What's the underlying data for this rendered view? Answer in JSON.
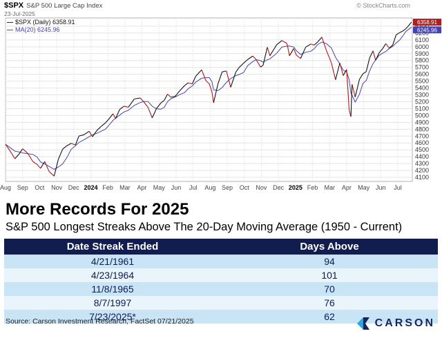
{
  "chart": {
    "symbol": "$SPX",
    "symbol_desc": "S&P 500 Large Cap Index",
    "date": "23-Jul-2025",
    "credit": "© StockCharts.com",
    "legend": [
      {
        "label": "$SPX (Daily) 6358.91",
        "color": "#111111"
      },
      {
        "label": "MA(20) 6245.96",
        "color": "#4343b0"
      }
    ],
    "price_box": {
      "value": "6358.91",
      "bg": "#a82020"
    },
    "ma_box": {
      "value": "6245.96",
      "bg": "#4343b0"
    }
  },
  "chart_data": {
    "type": "line",
    "title": "$SPX S&P 500 Large Cap Index",
    "xlabel": "",
    "ylabel": "",
    "grid": true,
    "legend_position": "top-left",
    "x_ticks": [
      "Aug",
      "Sep",
      "Oct",
      "Nov",
      "Dec",
      "2024",
      "Feb",
      "Mar",
      "Apr",
      "May",
      "Jun",
      "Jul",
      "Aug",
      "Sep",
      "Oct",
      "Nov",
      "Dec",
      "2025",
      "Feb",
      "Mar",
      "Apr",
      "May",
      "Jun",
      "Jul"
    ],
    "bold_ticks": [
      "2024",
      "2025"
    ],
    "ylim": [
      4040,
      6420
    ],
    "y_ticks": [
      6300,
      6200,
      6100,
      6000,
      5900,
      5800,
      5700,
      5600,
      5500,
      5400,
      5300,
      5200,
      5100,
      5000,
      4900,
      4800,
      4700,
      4600,
      4500,
      4400,
      4300,
      4200,
      4100
    ],
    "series": [
      {
        "name": "$SPX (Daily)",
        "last": 6358.91,
        "color": "#111111",
        "down_color": "#b01818",
        "points": [
          [
            0.0,
            4580
          ],
          [
            0.25,
            4490
          ],
          [
            0.55,
            4370
          ],
          [
            0.8,
            4440
          ],
          [
            1.0,
            4515
          ],
          [
            1.3,
            4450
          ],
          [
            1.6,
            4330
          ],
          [
            1.85,
            4288
          ],
          [
            2.05,
            4230
          ],
          [
            2.3,
            4330
          ],
          [
            2.55,
            4186
          ],
          [
            2.85,
            4117
          ],
          [
            3.1,
            4365
          ],
          [
            3.35,
            4510
          ],
          [
            3.6,
            4560
          ],
          [
            3.85,
            4595
          ],
          [
            4.1,
            4570
          ],
          [
            4.3,
            4700
          ],
          [
            4.6,
            4720
          ],
          [
            4.9,
            4770
          ],
          [
            5.1,
            4690
          ],
          [
            5.35,
            4780
          ],
          [
            5.6,
            4840
          ],
          [
            5.85,
            4890
          ],
          [
            6.1,
            4960
          ],
          [
            6.3,
            5025
          ],
          [
            6.45,
            4955
          ],
          [
            6.7,
            5090
          ],
          [
            6.95,
            5135
          ],
          [
            7.2,
            5120
          ],
          [
            7.55,
            5240
          ],
          [
            7.9,
            5255
          ],
          [
            8.1,
            5200
          ],
          [
            8.35,
            5120
          ],
          [
            8.6,
            4965
          ],
          [
            8.85,
            5100
          ],
          [
            9.1,
            5180
          ],
          [
            9.3,
            5220
          ],
          [
            9.5,
            5310
          ],
          [
            9.7,
            5265
          ],
          [
            9.95,
            5280
          ],
          [
            10.2,
            5355
          ],
          [
            10.5,
            5435
          ],
          [
            10.7,
            5475
          ],
          [
            10.95,
            5460
          ],
          [
            11.15,
            5570
          ],
          [
            11.5,
            5665
          ],
          [
            11.75,
            5505
          ],
          [
            11.95,
            5460
          ],
          [
            12.1,
            5346
          ],
          [
            12.2,
            5186
          ],
          [
            12.45,
            5455
          ],
          [
            12.7,
            5635
          ],
          [
            12.95,
            5648
          ],
          [
            13.2,
            5410
          ],
          [
            13.5,
            5630
          ],
          [
            13.7,
            5700
          ],
          [
            13.95,
            5760
          ],
          [
            14.2,
            5815
          ],
          [
            14.5,
            5865
          ],
          [
            14.7,
            5810
          ],
          [
            14.95,
            5705
          ],
          [
            15.1,
            5730
          ],
          [
            15.35,
            5995
          ],
          [
            15.5,
            5870
          ],
          [
            15.9,
            6030
          ],
          [
            16.2,
            6090
          ],
          [
            16.5,
            6050
          ],
          [
            16.65,
            5870
          ],
          [
            16.9,
            5975
          ],
          [
            17.05,
            5880
          ],
          [
            17.3,
            5830
          ],
          [
            17.6,
            5995
          ],
          [
            17.9,
            6040
          ],
          [
            18.1,
            6025
          ],
          [
            18.3,
            6070
          ],
          [
            18.55,
            6140
          ],
          [
            18.8,
            5955
          ],
          [
            19.1,
            5770
          ],
          [
            19.35,
            5520
          ],
          [
            19.6,
            5765
          ],
          [
            19.8,
            5580
          ],
          [
            20.0,
            5670
          ],
          [
            20.15,
            5074
          ],
          [
            20.25,
            4983
          ],
          [
            20.32,
            5456
          ],
          [
            20.5,
            5268
          ],
          [
            20.75,
            5525
          ],
          [
            20.95,
            5605
          ],
          [
            21.15,
            5640
          ],
          [
            21.35,
            5840
          ],
          [
            21.55,
            5940
          ],
          [
            21.7,
            5803
          ],
          [
            21.9,
            5910
          ],
          [
            22.1,
            5970
          ],
          [
            22.3,
            6045
          ],
          [
            22.5,
            5980
          ],
          [
            22.7,
            6025
          ],
          [
            22.9,
            6173
          ],
          [
            23.1,
            6205
          ],
          [
            23.3,
            6230
          ],
          [
            23.45,
            6259
          ],
          [
            23.6,
            6297
          ],
          [
            23.8,
            6359
          ]
        ]
      },
      {
        "name": "MA(20)",
        "last": 6245.96,
        "color": "#4343b0",
        "derived": "20-day moving average of $SPX"
      }
    ]
  },
  "headline": {
    "title": "More Records For 2025",
    "subtitle": "S&P 500 Longest Streaks Above The 20-Day Moving Average (1950 - Current)"
  },
  "table": {
    "columns": [
      "Date Streak Ended",
      "Days Above"
    ],
    "rows": [
      [
        "4/21/1961",
        "94"
      ],
      [
        "4/23/1964",
        "101"
      ],
      [
        "11/8/1965",
        "70"
      ],
      [
        "8/7/1997",
        "76"
      ],
      [
        "7/23/2025*",
        "62"
      ]
    ]
  },
  "source": "Source: Carson Investment Research, FactSet 07/21/2025",
  "logo": {
    "text": "CARSON"
  },
  "colors": {
    "table_header_bg": "#101d4e",
    "row_light": "#c9e4f5",
    "row_lighter": "#e9f4fb",
    "navy_text": "#0b1b57",
    "logo_navy": "#17275c",
    "logo_blue": "#2aa7df",
    "price_line": "#111111",
    "price_down": "#b01818",
    "ma_line": "#4343b0"
  }
}
